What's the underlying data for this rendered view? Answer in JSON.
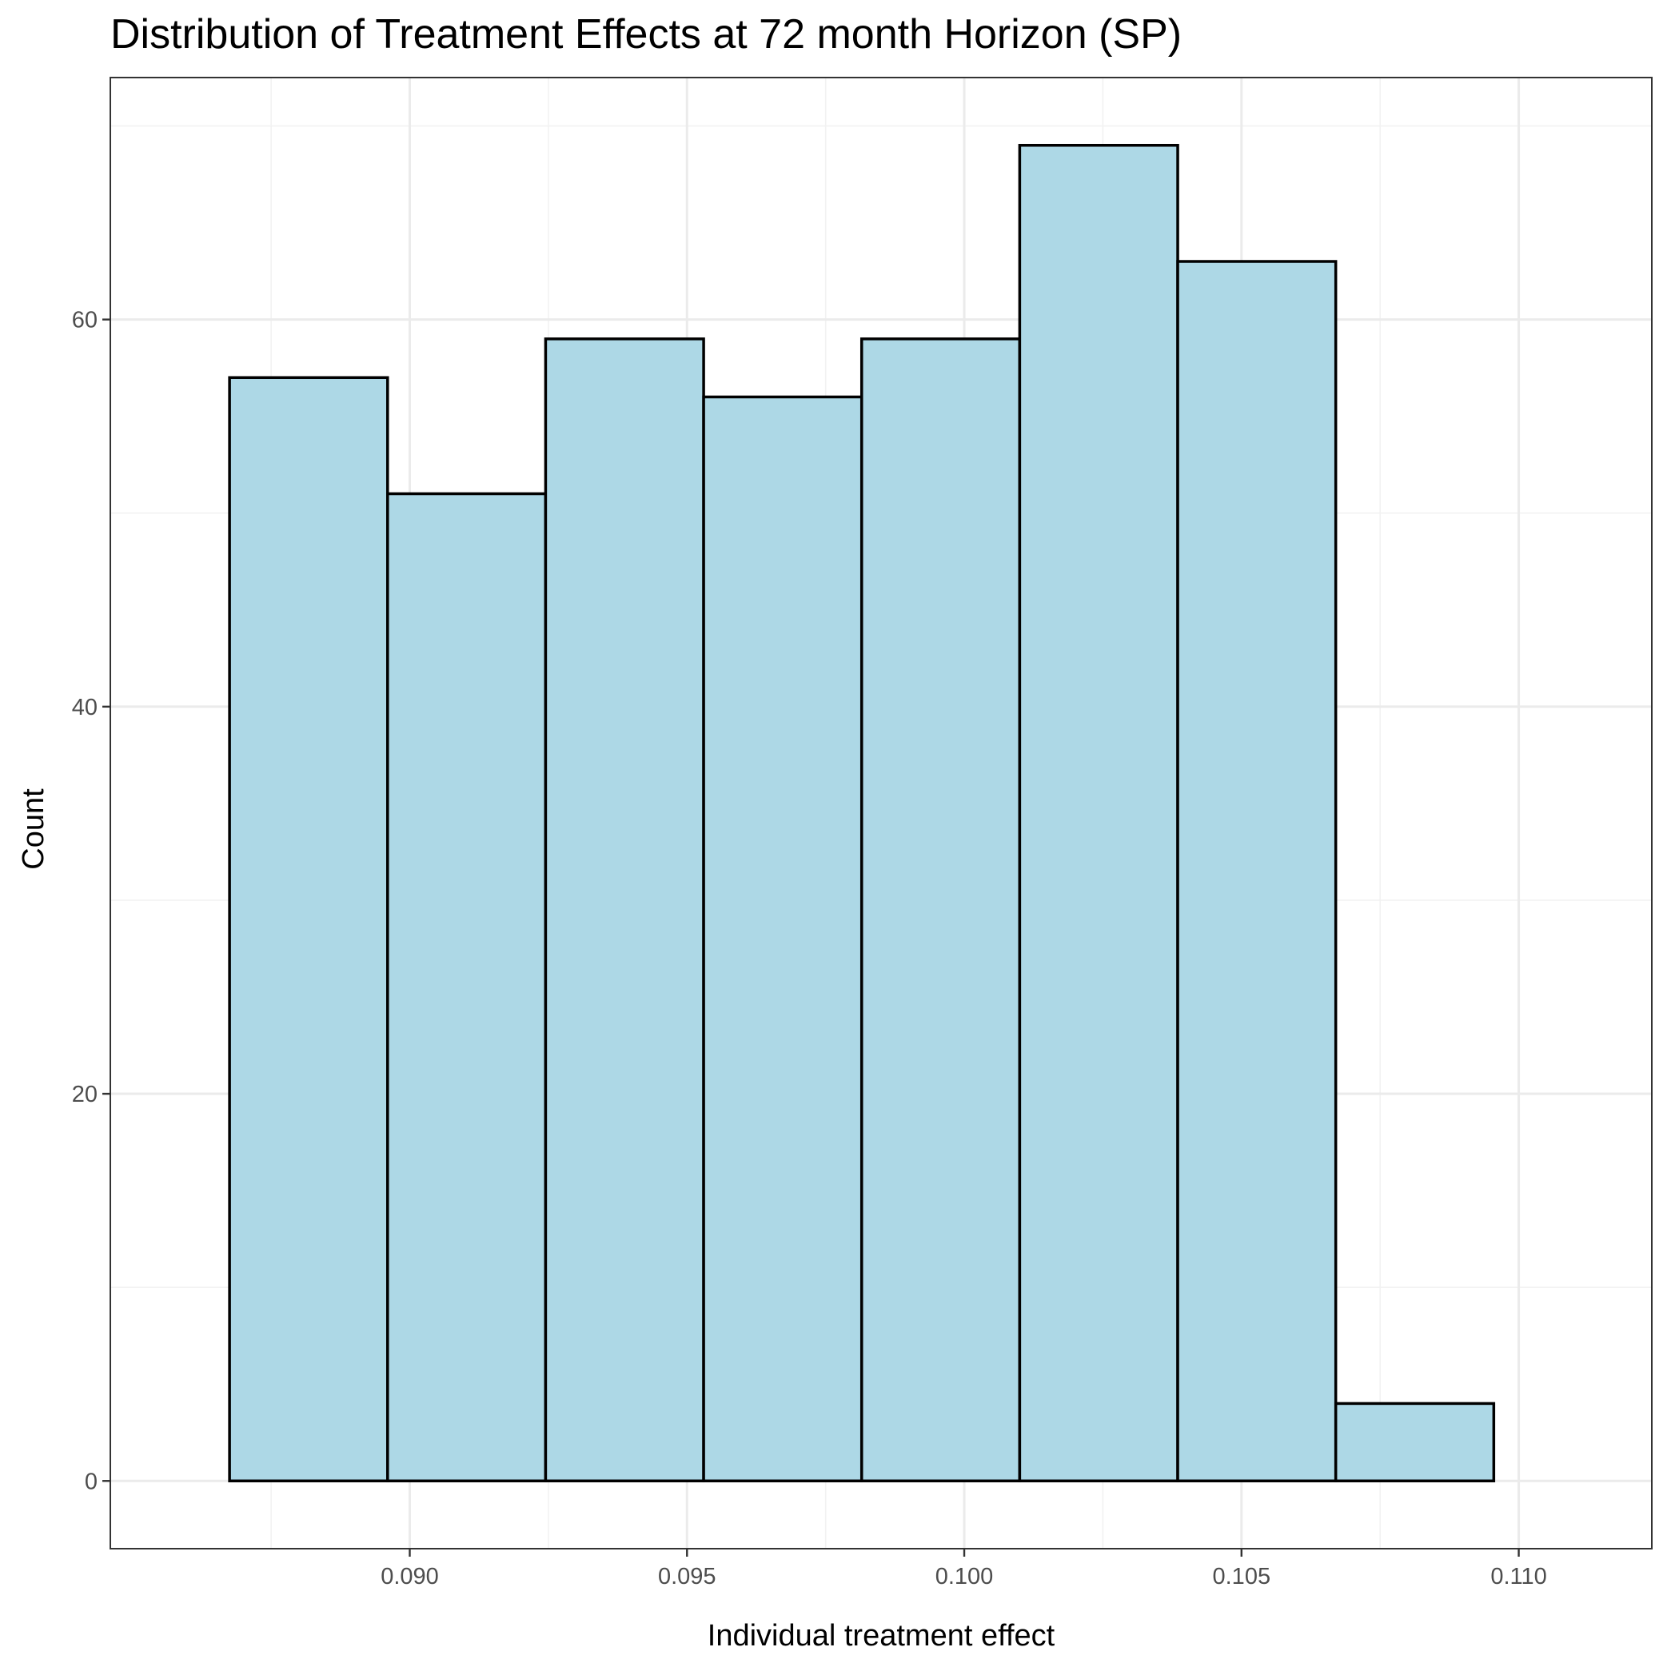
{
  "chart_data": {
    "type": "bar",
    "title": "Distribution of Treatment Effects at 72 month Horizon (SP)",
    "xlabel": "Individual treatment effect",
    "ylabel": "Count",
    "bins": [
      {
        "x0": 0.08675,
        "x1": 0.0896,
        "count": 57
      },
      {
        "x0": 0.0896,
        "x1": 0.09245,
        "count": 51
      },
      {
        "x0": 0.09245,
        "x1": 0.0953,
        "count": 59
      },
      {
        "x0": 0.0953,
        "x1": 0.09815,
        "count": 56
      },
      {
        "x0": 0.09815,
        "x1": 0.101,
        "count": 59
      },
      {
        "x0": 0.101,
        "x1": 0.10385,
        "count": 69
      },
      {
        "x0": 0.10385,
        "x1": 0.1067,
        "count": 63
      },
      {
        "x0": 0.1067,
        "x1": 0.10955,
        "count": 4
      }
    ],
    "x_ticks": [
      0.09,
      0.095,
      0.1,
      0.105,
      0.11
    ],
    "x_tick_labels": [
      "0.090",
      "0.095",
      "0.100",
      "0.105",
      "0.110"
    ],
    "y_ticks": [
      0,
      20,
      40,
      60
    ],
    "y_tick_labels": [
      "0",
      "20",
      "40",
      "60"
    ],
    "xlim": [
      0.0846,
      0.1124
    ],
    "ylim": [
      -3.5,
      72.5
    ],
    "grid": true,
    "legend": "none",
    "colors": {
      "bar_fill": "#add8e6",
      "bar_stroke": "#000000"
    }
  }
}
